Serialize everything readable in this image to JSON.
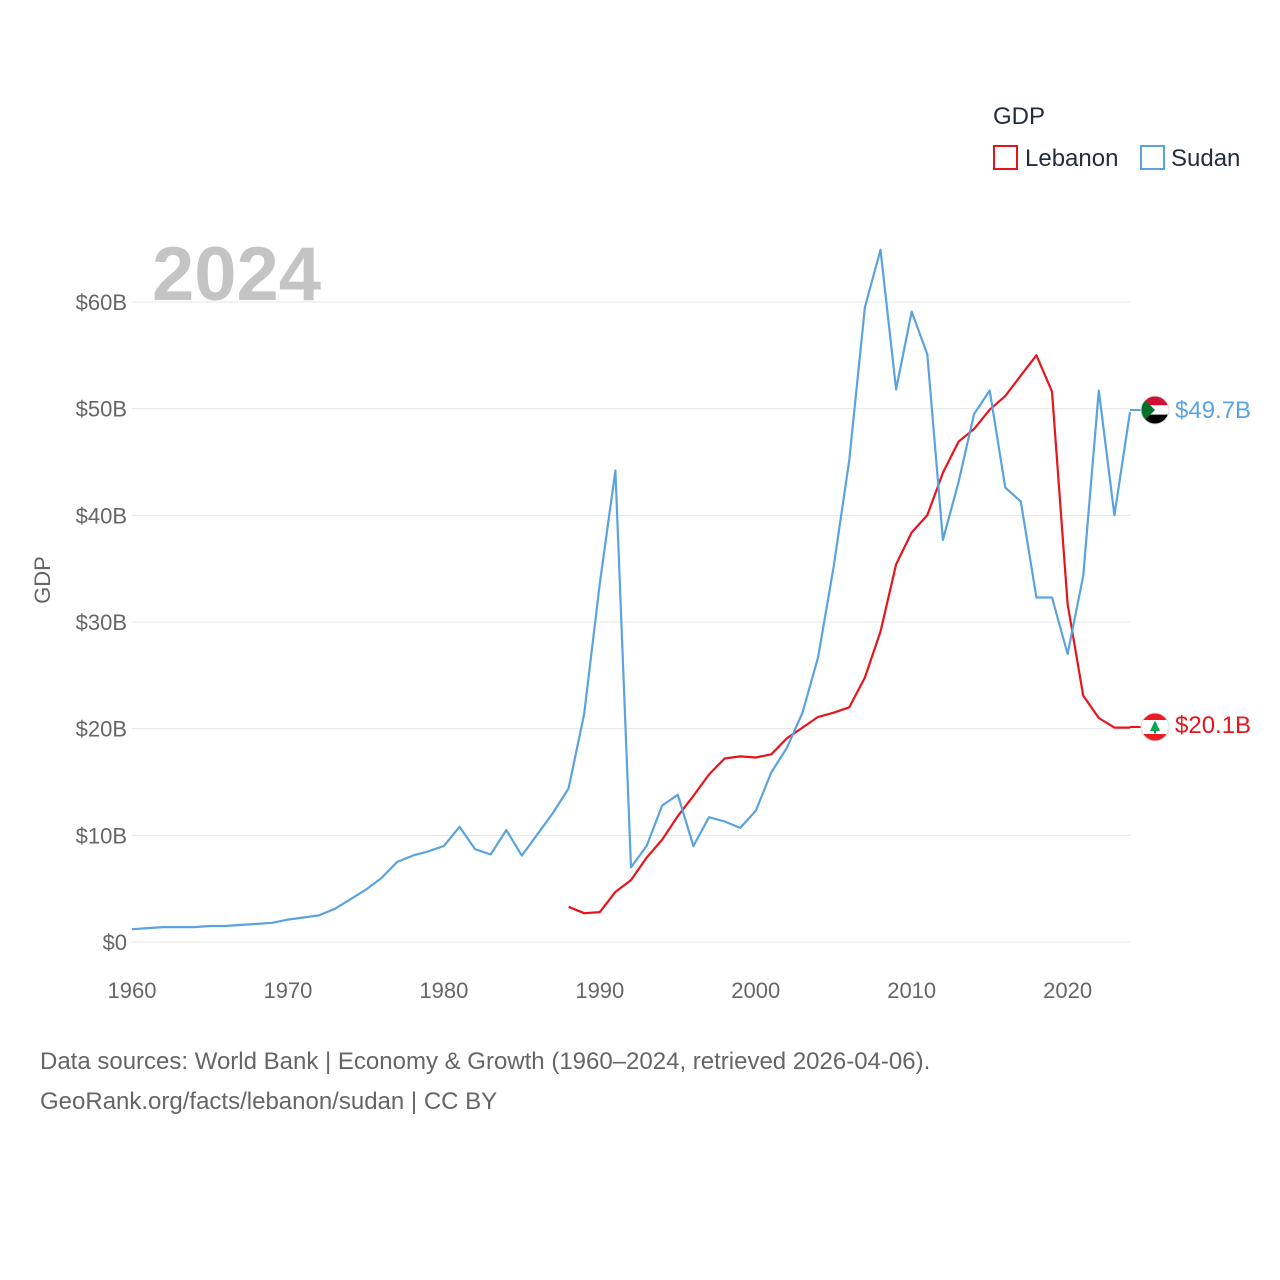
{
  "chart_data": {
    "type": "line",
    "title": "",
    "year_label": "2024",
    "ylabel": "GDP",
    "xlim": [
      1960,
      2024
    ],
    "ylim": [
      0,
      60
    ],
    "y_ticks": [
      {
        "value": 0,
        "label": "$0"
      },
      {
        "value": 10,
        "label": "$10B"
      },
      {
        "value": 20,
        "label": "$20B"
      },
      {
        "value": 30,
        "label": "$30B"
      },
      {
        "value": 40,
        "label": "$40B"
      },
      {
        "value": 50,
        "label": "$50B"
      },
      {
        "value": 60,
        "label": "$60B"
      }
    ],
    "x_ticks": [
      {
        "value": 1960,
        "label": "1960"
      },
      {
        "value": 1970,
        "label": "1970"
      },
      {
        "value": 1980,
        "label": "1980"
      },
      {
        "value": 1990,
        "label": "1990"
      },
      {
        "value": 2000,
        "label": "2000"
      },
      {
        "value": 2010,
        "label": "2010"
      },
      {
        "value": 2020,
        "label": "2020"
      }
    ],
    "legend": {
      "title": "GDP",
      "placement": "top-right"
    },
    "series": [
      {
        "name": "Lebanon",
        "color": "#e8141c",
        "end_label": "$20.1B",
        "points": [
          [
            1988,
            3.3
          ],
          [
            1989,
            2.7
          ],
          [
            1990,
            2.8
          ],
          [
            1991,
            4.7
          ],
          [
            1992,
            5.8
          ],
          [
            1993,
            7.9
          ],
          [
            1994,
            9.6
          ],
          [
            1995,
            11.8
          ],
          [
            1996,
            13.7
          ],
          [
            1997,
            15.7
          ],
          [
            1998,
            17.2
          ],
          [
            1999,
            17.4
          ],
          [
            2000,
            17.3
          ],
          [
            2001,
            17.6
          ],
          [
            2002,
            19.1
          ],
          [
            2003,
            20.1
          ],
          [
            2004,
            21.1
          ],
          [
            2005,
            21.5
          ],
          [
            2006,
            22.0
          ],
          [
            2007,
            24.8
          ],
          [
            2008,
            29.1
          ],
          [
            2009,
            35.4
          ],
          [
            2010,
            38.4
          ],
          [
            2011,
            40.0
          ],
          [
            2012,
            44.0
          ],
          [
            2013,
            46.9
          ],
          [
            2014,
            48.1
          ],
          [
            2015,
            49.9
          ],
          [
            2016,
            51.2
          ],
          [
            2017,
            53.1
          ],
          [
            2018,
            55.0
          ],
          [
            2019,
            51.6
          ],
          [
            2020,
            31.7
          ],
          [
            2021,
            23.1
          ],
          [
            2022,
            21.0
          ],
          [
            2023,
            20.1
          ],
          [
            2024,
            20.1
          ]
        ]
      },
      {
        "name": "Sudan",
        "color": "#5ba3e0",
        "end_label": "$49.7B",
        "points": [
          [
            1960,
            1.2
          ],
          [
            1961,
            1.3
          ],
          [
            1962,
            1.4
          ],
          [
            1963,
            1.4
          ],
          [
            1964,
            1.4
          ],
          [
            1965,
            1.5
          ],
          [
            1966,
            1.5
          ],
          [
            1967,
            1.6
          ],
          [
            1968,
            1.7
          ],
          [
            1969,
            1.8
          ],
          [
            1970,
            2.1
          ],
          [
            1971,
            2.3
          ],
          [
            1972,
            2.5
          ],
          [
            1973,
            3.1
          ],
          [
            1974,
            4.0
          ],
          [
            1975,
            4.9
          ],
          [
            1976,
            6.0
          ],
          [
            1977,
            7.5
          ],
          [
            1978,
            8.1
          ],
          [
            1979,
            8.5
          ],
          [
            1980,
            9.0
          ],
          [
            1981,
            10.8
          ],
          [
            1982,
            8.7
          ],
          [
            1983,
            8.2
          ],
          [
            1984,
            10.5
          ],
          [
            1985,
            8.1
          ],
          [
            1986,
            10.1
          ],
          [
            1987,
            12.1
          ],
          [
            1988,
            14.4
          ],
          [
            1989,
            21.4
          ],
          [
            1990,
            33.6
          ],
          [
            1991,
            44.2
          ],
          [
            1992,
            7.0
          ],
          [
            1993,
            9.0
          ],
          [
            1994,
            12.8
          ],
          [
            1995,
            13.8
          ],
          [
            1996,
            9.0
          ],
          [
            1997,
            11.7
          ],
          [
            1998,
            11.3
          ],
          [
            1999,
            10.7
          ],
          [
            2000,
            12.3
          ],
          [
            2001,
            15.9
          ],
          [
            2002,
            18.2
          ],
          [
            2003,
            21.5
          ],
          [
            2004,
            26.7
          ],
          [
            2005,
            35.2
          ],
          [
            2006,
            45.2
          ],
          [
            2007,
            59.5
          ],
          [
            2008,
            64.9
          ],
          [
            2009,
            51.8
          ],
          [
            2010,
            59.1
          ],
          [
            2011,
            55.1
          ],
          [
            2012,
            37.7
          ],
          [
            2013,
            43.1
          ],
          [
            2014,
            49.5
          ],
          [
            2015,
            51.7
          ],
          [
            2016,
            42.6
          ],
          [
            2017,
            41.3
          ],
          [
            2018,
            32.3
          ],
          [
            2019,
            32.3
          ],
          [
            2020,
            27.0
          ],
          [
            2021,
            34.3
          ],
          [
            2022,
            51.7
          ],
          [
            2023,
            40.0
          ],
          [
            2024,
            49.7
          ]
        ]
      }
    ]
  },
  "footer": {
    "line1": "Data sources: World Bank | Economy & Growth (1960–2024, retrieved 2026-04-06).",
    "line2": "GeoRank.org/facts/lebanon/sudan | CC BY"
  }
}
